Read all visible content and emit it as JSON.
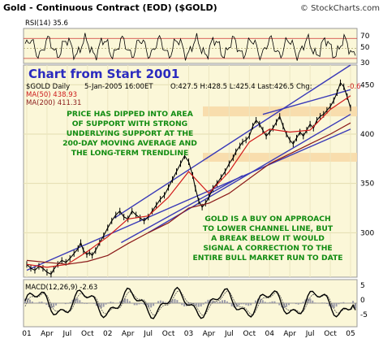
{
  "header": {
    "title": "Gold - Continuous Contract (EOD) ($GOLD)",
    "copyright": "© StockCharts.com"
  },
  "rsi": {
    "label": "RSI(14) 35.6",
    "levels": [
      "70",
      "50",
      "30"
    ],
    "last": 35.6
  },
  "main_label": "Chart from Start 2001",
  "info": {
    "symbol": "$GOLD Daily",
    "date": "5-Jan-2005 16:00ET",
    "ohlc": "O:427.5 H:428.5 L:425.4 Last:426.5 Chg:",
    "chg": "-0.6",
    "ma50": "MA(50) 438.93",
    "ma200": "MA(200) 411.31"
  },
  "annotations": {
    "top": [
      "PRICE HAS DIPPED INTO AREA",
      "OF SUPPORT WITH STRONG",
      "UNDERLYING SUPPORT AT THE",
      "200-DAY MOVING AVERAGE AND",
      "THE LONG-TERM TRENDLINE"
    ],
    "bottom": [
      "GOLD IS A BUY ON APPROACH",
      "TO LOWER CHANNEL LINE, BUT",
      "A BREAK BELOW IT WOULD",
      "SIGNAL A CORRECTION TO THE",
      "ENTIRE BULL MARKET RUN TO DATE"
    ]
  },
  "macd": {
    "label": "MACD(12,26,9) -2.63",
    "levels": [
      "5",
      "0",
      "-5"
    ],
    "last": -2.63
  },
  "colors": {
    "price_bars": "#000000",
    "ma50": "#d11a1a",
    "ma200": "#8b1a1a",
    "channel": "#3a3ab8",
    "support_band": "#f7d9a8",
    "rsi_line": "#000000",
    "histogram": "#9a9aa8",
    "annotation": "#128c12",
    "big_label": "#2b2bbf"
  },
  "chart_data": {
    "type": "line",
    "title": "Gold - Continuous Contract (EOD) ($GOLD)",
    "xlabel": "",
    "ylabel": "",
    "x_ticks": [
      "01",
      "Apr",
      "Jul",
      "Oct",
      "02",
      "Apr",
      "Jul",
      "Oct",
      "03",
      "Apr",
      "Jul",
      "Oct",
      "04",
      "Apr",
      "Jul",
      "Oct",
      "05"
    ],
    "y_ticks": [
      300,
      350,
      400,
      450
    ],
    "ylim": [
      255,
      470
    ],
    "series": [
      {
        "name": "$GOLD Daily",
        "x": [
          0,
          0.6,
          1.2,
          1.8,
          2.4,
          3,
          3.6,
          4,
          4.6,
          5.2,
          5.8,
          6.4,
          7,
          7.6,
          8,
          8.4,
          8.9,
          9.3,
          9.7,
          10.2,
          10.8,
          11.4,
          12,
          12.6,
          13.2,
          13.8,
          14.4,
          15,
          15.6,
          16.2,
          16.8,
          17.4,
          18,
          18.6,
          19.2,
          19.8,
          20.4,
          21,
          21.6,
          22.2,
          22.8,
          23.4,
          24,
          24.6,
          25,
          25.5,
          26,
          26.5,
          27,
          27.6,
          28.2,
          28.8,
          29.4,
          30,
          30.6,
          31,
          31.6,
          32,
          32.5,
          33,
          33.5,
          34,
          34.5,
          35,
          35.5,
          36,
          36.5,
          37,
          37.5,
          38,
          38.5,
          39,
          39.5,
          40,
          40.5,
          41,
          41.5,
          42,
          42.5,
          43,
          43.5,
          44,
          44.5,
          45,
          45.5,
          46,
          46.5,
          47,
          47.5,
          48
        ],
        "values": [
          268,
          264,
          262,
          266,
          264,
          260,
          258,
          263,
          268,
          272,
          270,
          274,
          279,
          284,
          290,
          282,
          278,
          280,
          277,
          282,
          290,
          297,
          305,
          312,
          318,
          322,
          316,
          314,
          322,
          318,
          315,
          312,
          316,
          322,
          328,
          334,
          338,
          346,
          354,
          362,
          370,
          378,
          372,
          358,
          345,
          332,
          326,
          330,
          336,
          345,
          350,
          356,
          362,
          370,
          376,
          382,
          388,
          392,
          394,
          398,
          408,
          414,
          410,
          404,
          398,
          402,
          406,
          412,
          418,
          408,
          400,
          394,
          390,
          396,
          402,
          398,
          404,
          410,
          406,
          414,
          418,
          420,
          424,
          428,
          434,
          442,
          452,
          448,
          438,
          426.5
        ]
      },
      {
        "name": "MA(50)",
        "x": [
          0,
          3,
          6,
          9,
          12,
          15,
          18,
          21,
          24,
          27,
          30,
          33,
          36,
          39,
          42,
          45,
          48
        ],
        "values": [
          268,
          265,
          268,
          281,
          296,
          314,
          317,
          336,
          362,
          340,
          362,
          392,
          405,
          402,
          404,
          425,
          438.93
        ]
      },
      {
        "name": "MA(200)",
        "x": [
          0,
          3,
          6,
          9,
          12,
          15,
          18,
          21,
          24,
          27,
          30,
          33,
          36,
          39,
          42,
          45,
          48
        ],
        "values": [
          272,
          270,
          268,
          271,
          277,
          289,
          300,
          310,
          325,
          330,
          340,
          355,
          370,
          380,
          390,
          400,
          411.31
        ]
      }
    ]
  }
}
